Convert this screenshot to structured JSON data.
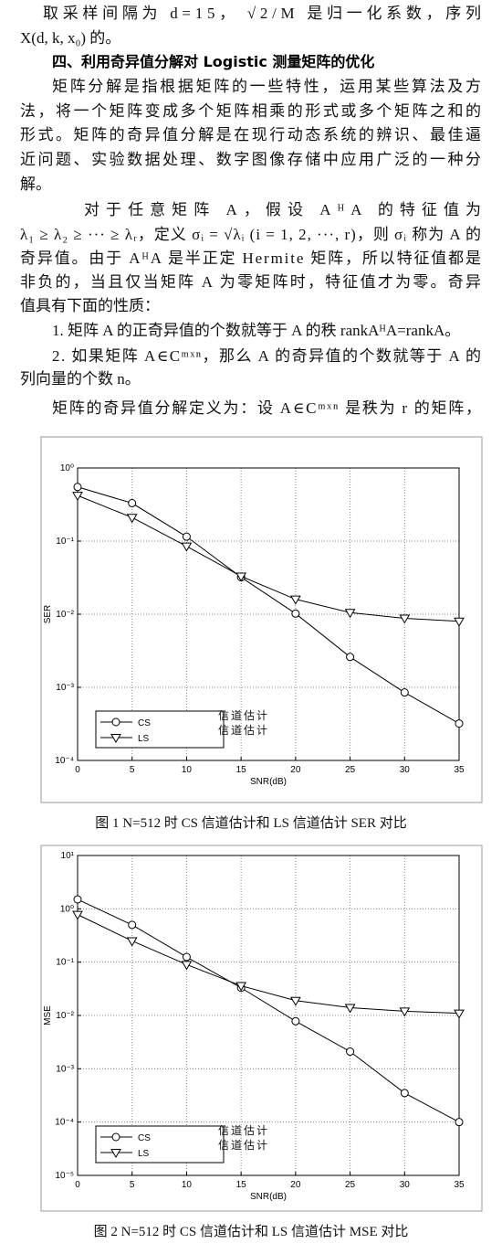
{
  "document": {
    "lines": [
      "取采样间隔为 d=15， √2/M  是归一化系数，序列",
      "X(d, k, x₀) 的。",
      "四、利用奇异值分解对 Logistic 测量矩阵的优化",
      "矩阵分解是指根据矩阵的一些特性，运用某些算法及方",
      "法，将一个矩阵变成多个矩阵相乘的形式或多个矩阵之和的",
      "形式。矩阵的奇异值分解是在现行动态系统的辨识、最佳逼",
      "近问题、实验数据处理、数字图像存储中应用广泛的一种分",
      "解。",
      "对于任意矩阵 A，假设 AᴴA 的特征值为",
      "λ₁ ≥ λ₂ ≥ ··· ≥ λᵣ，定义 σᵢ = √λᵢ (i = 1, 2, ···, r)，则 σᵢ 称为 A 的",
      "奇异值。由于 AᴴA 是半正定 Hermite 矩阵，所以特征值都是",
      "非负的，当且仅当矩阵 A 为零矩阵时，特征值才为零。奇异",
      "值具有下面的性质：",
      "1. 矩阵 A 的正奇异值的个数就等于 A 的秩 rankAᴴA=rankA。",
      "2. 如果矩阵 A∈Cᵐˣⁿ，那么 A 的奇异值的个数就等于 A 的",
      "列向量的个数 n。",
      "矩阵的奇异值分解定义为：设 A∈Cᵐˣⁿ 是秩为 r 的矩阵，"
    ]
  },
  "figures": [
    {
      "chart_data": {
        "type": "line",
        "x": [
          0,
          5,
          10,
          15,
          20,
          25,
          30,
          35
        ],
        "xlim": [
          0,
          35
        ],
        "xticks": [
          0,
          5,
          10,
          15,
          20,
          25,
          30,
          35
        ],
        "ylim": [
          0.0001,
          1
        ],
        "yscale": "log",
        "yticks": [
          {
            "value": 0.0001,
            "label": "10⁻⁴"
          },
          {
            "value": 0.001,
            "label": "10⁻³"
          },
          {
            "value": 0.01,
            "label": "10⁻²"
          },
          {
            "value": 0.1,
            "label": "10⁻¹"
          },
          {
            "value": 1,
            "label": "10⁰"
          }
        ],
        "x_label": "SNR(dB)",
        "y_label": "SER",
        "grid": true,
        "legend": "lower left",
        "series": [
          {
            "name": "CS",
            "color": "#000000",
            "marker": "circle",
            "values": [
              0.55,
              0.33,
              0.115,
              0.032,
              0.0102,
              0.0026,
              0.00085,
              0.00032
            ]
          },
          {
            "name": "LS",
            "color": "#000000",
            "marker": "triangle-down",
            "values": [
              0.42,
              0.21,
              0.085,
              0.033,
              0.016,
              0.0105,
              0.0088,
              0.008
            ]
          }
        ],
        "legend_notes": [
          "信道估计",
          "信道估计"
        ]
      },
      "caption": "图 1 N=512 时 CS 信道估计和 LS 信道估计 SER 对比"
    },
    {
      "chart_data": {
        "type": "line",
        "x": [
          0,
          5,
          10,
          15,
          20,
          25,
          30,
          35
        ],
        "xlim": [
          0,
          35
        ],
        "xticks": [
          0,
          5,
          10,
          15,
          20,
          25,
          30,
          35
        ],
        "ylim": [
          1e-05,
          10
        ],
        "yscale": "log",
        "yticks": [
          {
            "value": 1e-05,
            "label": "10⁻⁵"
          },
          {
            "value": 0.0001,
            "label": "10⁻⁴"
          },
          {
            "value": 0.001,
            "label": "10⁻³"
          },
          {
            "value": 0.01,
            "label": "10⁻²"
          },
          {
            "value": 0.1,
            "label": "10⁻¹"
          },
          {
            "value": 1,
            "label": "10⁰"
          },
          {
            "value": 10,
            "label": "10¹"
          }
        ],
        "x_label": "SNR(dB)",
        "y_label": "MSE",
        "grid": true,
        "legend": "lower left",
        "series": [
          {
            "name": "CS",
            "color": "#000000",
            "marker": "circle",
            "values": [
              1.5,
              0.5,
              0.125,
              0.033,
              0.0078,
              0.0021,
              0.00035,
              0.0001
            ]
          },
          {
            "name": "LS",
            "color": "#000000",
            "marker": "triangle-down",
            "values": [
              0.78,
              0.25,
              0.09,
              0.036,
              0.019,
              0.014,
              0.012,
              0.011
            ]
          }
        ],
        "legend_notes": [
          "信道估计",
          "信道估计"
        ]
      },
      "caption": "图 2 N=512 时 CS 信道估计和 LS 信道估计 MSE 对比"
    }
  ]
}
